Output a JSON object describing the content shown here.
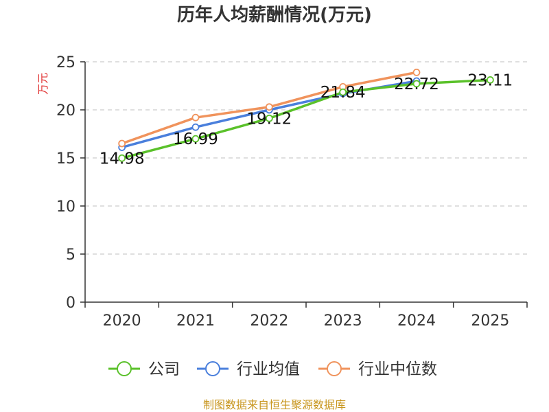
{
  "chart_data": {
    "type": "line",
    "title": "历年人均薪酬情况(万元)",
    "ylabel": "万元",
    "xlabel": "",
    "ylim": [
      0,
      25
    ],
    "yticks": [
      0,
      5,
      10,
      15,
      20,
      25
    ],
    "categories": [
      "2020",
      "2021",
      "2022",
      "2023",
      "2024",
      "2025"
    ],
    "grid": true,
    "legend_position": "bottom",
    "series": [
      {
        "name": "公司",
        "color": "#5ac12a",
        "values": [
          14.98,
          16.99,
          19.12,
          21.84,
          22.72,
          23.11
        ],
        "labels": [
          "14.98",
          "16.99",
          "19.12",
          "21.84",
          "22.72",
          "23.11"
        ]
      },
      {
        "name": "行业均值",
        "color": "#4a7fdc",
        "values": [
          16.1,
          18.2,
          20.0,
          21.7,
          23.0,
          null
        ]
      },
      {
        "name": "行业中位数",
        "color": "#f0935c",
        "values": [
          16.5,
          19.2,
          20.3,
          22.4,
          23.9,
          null
        ]
      }
    ],
    "source": "制图数据来自恒生聚源数据库"
  },
  "colors": {
    "ylabel": "#e03030",
    "source": "#c8961e",
    "grid": "#cccccc",
    "axis": "#333333"
  }
}
